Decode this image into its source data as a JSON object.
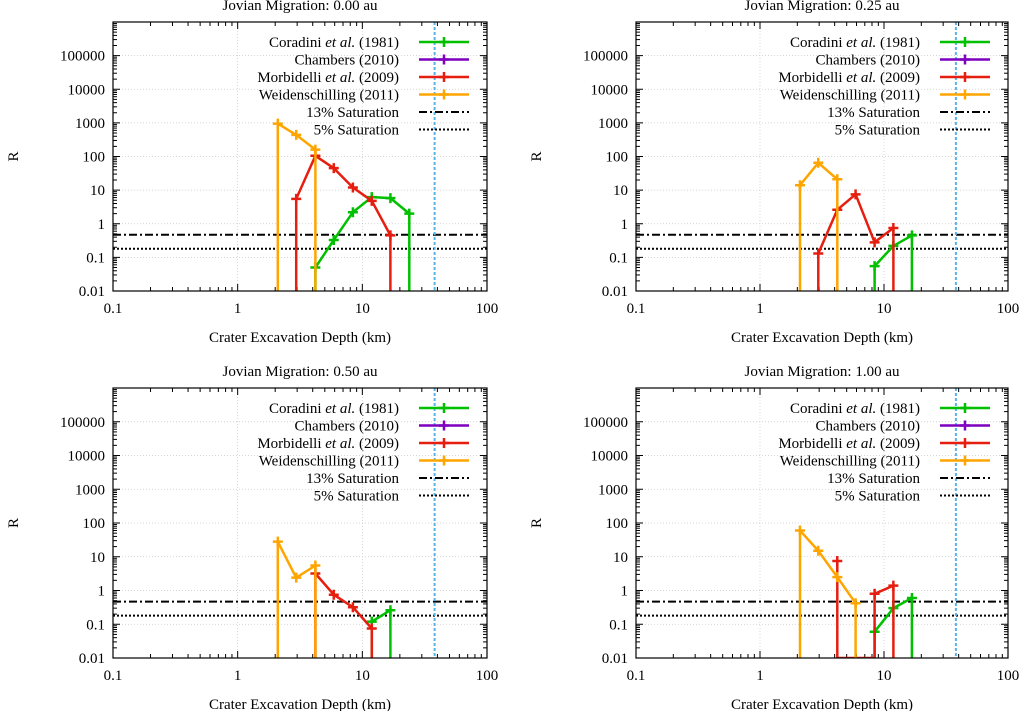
{
  "chart_data": [
    {
      "type": "line",
      "title": "Jovian Migration: 0.00 au",
      "xlabel": "Crater Excavation Depth (km)",
      "ylabel": "R",
      "xscale": "log",
      "yscale": "log",
      "xlim": [
        0.1,
        100
      ],
      "ylim": [
        0.01,
        1000000
      ],
      "xticks": [
        "0.1",
        "1",
        "10",
        "100"
      ],
      "yticks": [
        "0.01",
        "0.1",
        "1",
        "10",
        "100",
        "1000",
        "10000",
        "100000"
      ],
      "legend_position": "top-right",
      "vline": {
        "x": 38,
        "color": "#56b4e9"
      },
      "hlines": [
        {
          "name": "13% Saturation",
          "y": 0.47,
          "style": "dashdot"
        },
        {
          "name": "5% Saturation",
          "y": 0.18,
          "style": "dotted"
        }
      ],
      "series": [
        {
          "name": "Coradini",
          "name_italic": "et al.",
          "name_suffix": "(1981)",
          "color": "#00c000",
          "x": [
            4.2,
            4.2,
            5.9,
            8.4,
            11.9,
            16.8,
            23.8,
            23.8
          ],
          "y": [
            0.01,
            0.05,
            0.33,
            2.2,
            6.2,
            5.8,
            2.0,
            0.01
          ]
        },
        {
          "name": "Chambers (2010)",
          "color": "#7f00bf",
          "x": [],
          "y": []
        },
        {
          "name": "Morbidelli",
          "name_italic": "et al.",
          "name_suffix": "(2009)",
          "color": "#e51e10",
          "x": [
            2.95,
            2.95,
            4.2,
            5.9,
            8.4,
            11.9,
            16.8,
            16.8
          ],
          "y": [
            0.01,
            5.5,
            105,
            45,
            12,
            4.8,
            0.45,
            0.01
          ]
        },
        {
          "name": "Weidenschilling (2011)",
          "color": "#ffa500",
          "x": [
            2.1,
            2.1,
            2.95,
            4.2,
            4.2
          ],
          "y": [
            0.01,
            950,
            440,
            160,
            0.01
          ]
        }
      ]
    },
    {
      "type": "line",
      "title": "Jovian Migration: 0.25 au",
      "xlabel": "Crater Excavation Depth (km)",
      "ylabel": "R",
      "xscale": "log",
      "yscale": "log",
      "xlim": [
        0.1,
        100
      ],
      "ylim": [
        0.01,
        1000000
      ],
      "xticks": [
        "0.1",
        "1",
        "10",
        "100"
      ],
      "yticks": [
        "0.01",
        "0.1",
        "1",
        "10",
        "100",
        "1000",
        "10000",
        "100000"
      ],
      "legend_position": "top-right",
      "vline": {
        "x": 38,
        "color": "#56b4e9"
      },
      "hlines": [
        {
          "name": "13% Saturation",
          "y": 0.47,
          "style": "dashdot"
        },
        {
          "name": "5% Saturation",
          "y": 0.18,
          "style": "dotted"
        }
      ],
      "series": [
        {
          "name": "Coradini",
          "name_italic": "et al.",
          "name_suffix": "(1981)",
          "color": "#00c000",
          "x": [
            8.4,
            8.4,
            11.9,
            16.8,
            16.8
          ],
          "y": [
            0.01,
            0.055,
            0.22,
            0.45,
            0.01
          ]
        },
        {
          "name": "Chambers (2010)",
          "color": "#7f00bf",
          "x": [],
          "y": []
        },
        {
          "name": "Morbidelli",
          "name_italic": "et al.",
          "name_suffix": "(2009)",
          "color": "#e51e10",
          "x": [
            2.95,
            2.95,
            4.2,
            5.9,
            8.4,
            11.9,
            11.9
          ],
          "y": [
            0.01,
            0.13,
            2.6,
            7.5,
            0.28,
            0.75,
            0.01
          ]
        },
        {
          "name": "Weidenschilling (2011)",
          "color": "#ffa500",
          "x": [
            2.1,
            2.1,
            2.95,
            4.2,
            4.2
          ],
          "y": [
            0.01,
            14,
            65,
            21,
            0.01
          ]
        }
      ]
    },
    {
      "type": "line",
      "title": "Jovian Migration: 0.50 au",
      "xlabel": "Crater Excavation Depth (km)",
      "ylabel": "R",
      "xscale": "log",
      "yscale": "log",
      "xlim": [
        0.1,
        100
      ],
      "ylim": [
        0.01,
        1000000
      ],
      "xticks": [
        "0.1",
        "1",
        "10",
        "100"
      ],
      "yticks": [
        "0.01",
        "0.1",
        "1",
        "10",
        "100",
        "1000",
        "10000",
        "100000"
      ],
      "legend_position": "top-right",
      "vline": {
        "x": 38,
        "color": "#56b4e9"
      },
      "hlines": [
        {
          "name": "13% Saturation",
          "y": 0.47,
          "style": "dashdot"
        },
        {
          "name": "5% Saturation",
          "y": 0.18,
          "style": "dotted"
        }
      ],
      "series": [
        {
          "name": "Coradini",
          "name_italic": "et al.",
          "name_suffix": "(1981)",
          "color": "#00c000",
          "x": [
            11.9,
            11.9,
            16.8,
            16.8
          ],
          "y": [
            0.01,
            0.12,
            0.26,
            0.01
          ]
        },
        {
          "name": "Chambers (2010)",
          "color": "#7f00bf",
          "x": [],
          "y": []
        },
        {
          "name": "Morbidelli",
          "name_italic": "et al.",
          "name_suffix": "(2009)",
          "color": "#e51e10",
          "x": [
            4.2,
            4.2,
            5.9,
            8.4,
            11.9,
            11.9
          ],
          "y": [
            0.01,
            3.2,
            0.75,
            0.32,
            0.075,
            0.01
          ]
        },
        {
          "name": "Weidenschilling (2011)",
          "color": "#ffa500",
          "x": [
            2.1,
            2.1,
            2.95,
            4.2,
            4.2
          ],
          "y": [
            0.01,
            28,
            2.4,
            5.5,
            0.01
          ]
        }
      ]
    },
    {
      "type": "line",
      "title": "Jovian Migration: 1.00 au",
      "xlabel": "Crater Excavation Depth (km)",
      "ylabel": "R",
      "xscale": "log",
      "yscale": "log",
      "xlim": [
        0.1,
        100
      ],
      "ylim": [
        0.01,
        1000000
      ],
      "xticks": [
        "0.1",
        "1",
        "10",
        "100"
      ],
      "yticks": [
        "0.01",
        "0.1",
        "1",
        "10",
        "100",
        "1000",
        "10000",
        "100000"
      ],
      "legend_position": "top-right",
      "vline": {
        "x": 38,
        "color": "#56b4e9"
      },
      "hlines": [
        {
          "name": "13% Saturation",
          "y": 0.47,
          "style": "dashdot"
        },
        {
          "name": "5% Saturation",
          "y": 0.18,
          "style": "dotted"
        }
      ],
      "series": [
        {
          "name": "Coradini",
          "name_italic": "et al.",
          "name_suffix": "(1981)",
          "color": "#00c000",
          "x": [
            8.4,
            8.4,
            11.9,
            16.8,
            16.8
          ],
          "y": [
            0.01,
            0.06,
            0.3,
            0.6,
            0.01
          ]
        },
        {
          "name": "Chambers (2010)",
          "color": "#7f00bf",
          "x": [],
          "y": []
        },
        {
          "name": "Morbidelli",
          "name_italic": "et al.",
          "name_suffix": "(2009)",
          "color": "#e51e10",
          "x": [
            4.2,
            4.2,
            4.2,
            8.4,
            8.4,
            11.9,
            11.9
          ],
          "y": [
            0.01,
            7.5,
            0.01,
            0.01,
            0.8,
            1.4,
            0.01
          ]
        },
        {
          "name": "Weidenschilling (2011)",
          "color": "#ffa500",
          "x": [
            2.1,
            2.1,
            2.95,
            4.2,
            5.9,
            5.9
          ],
          "y": [
            0.01,
            60,
            15,
            2.5,
            0.42,
            0.01
          ]
        }
      ]
    }
  ]
}
